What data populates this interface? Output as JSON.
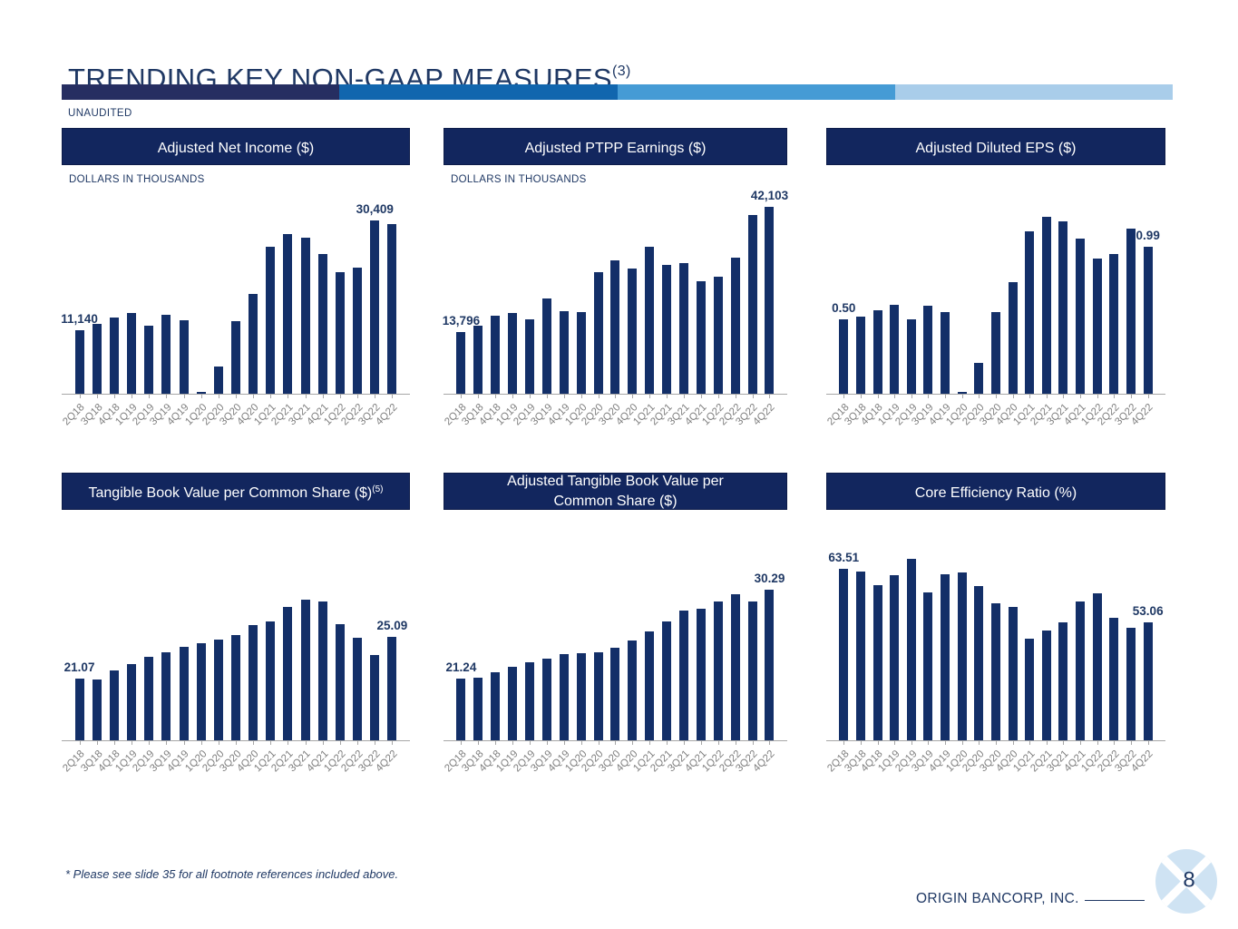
{
  "slide": {
    "title": "TRENDING KEY NON-GAAP MEASURES",
    "title_superscript": "(3)",
    "subtitle": "UNAUDITED",
    "footnote": "* Please see slide 35 for all footnote references included above.",
    "brand": "ORIGIN BANCORP, INC.",
    "page_number": "8"
  },
  "colors": {
    "navy_text": "#1f3864",
    "header_bg": "#12265e",
    "bar": "#132f68",
    "axis_gray": "#a6a6a6",
    "tick_label_gray": "#7f7f7f",
    "accent_segments": [
      "#262e61",
      "#1166ae",
      "#459bd5",
      "#a9cdea"
    ],
    "logo_fill": "#cfe3f3"
  },
  "categories": [
    "2Q18",
    "3Q18",
    "4Q18",
    "1Q19",
    "2Q19",
    "3Q19",
    "4Q19",
    "1Q20",
    "2Q20",
    "3Q20",
    "4Q20",
    "1Q21",
    "2Q21",
    "3Q21",
    "4Q21",
    "1Q22",
    "2Q22",
    "3Q22",
    "4Q22"
  ],
  "chart_data": [
    {
      "type": "bar",
      "title": "Adjusted Net Income ($)",
      "units": "DOLLARS IN THOUSANDS",
      "ylim": [
        0,
        33400
      ],
      "values": [
        11140,
        12310,
        13350,
        14230,
        11980,
        13840,
        12860,
        300,
        4830,
        12800,
        17470,
        25710,
        28020,
        27360,
        24510,
        21310,
        22140,
        30409,
        29800
      ],
      "value_labels": [
        {
          "index": 0,
          "text": "11,140"
        },
        {
          "index": 17,
          "text": "30,409"
        }
      ]
    },
    {
      "type": "bar",
      "title": "Adjusted PTPP Earnings ($)",
      "units": "DOLLARS IN THOUSANDS",
      "ylim": [
        0,
        42900
      ],
      "values": [
        13796,
        15380,
        17650,
        18270,
        16690,
        21450,
        18550,
        18480,
        27310,
        30000,
        28140,
        33170,
        29030,
        29450,
        25310,
        26420,
        30550,
        40200,
        42103
      ],
      "value_labels": [
        {
          "index": 0,
          "text": "13,796"
        },
        {
          "index": 18,
          "text": "42,103"
        }
      ]
    },
    {
      "type": "bar",
      "title": "Adjusted Diluted EPS ($)",
      "ylim": [
        0,
        1.28
      ],
      "values": [
        0.5,
        0.52,
        0.56,
        0.6,
        0.5,
        0.59,
        0.55,
        0.01,
        0.21,
        0.55,
        0.75,
        1.09,
        1.19,
        1.16,
        1.04,
        0.91,
        0.94,
        1.11,
        0.99
      ],
      "value_labels": [
        {
          "index": 0,
          "text": "0.50"
        },
        {
          "index": 18,
          "text": "0.99"
        }
      ]
    },
    {
      "type": "bar",
      "title": "Tangible Book Value per Common Share ($)",
      "title_superscript": "(5)",
      "ylim": [
        15.2,
        32.5
      ],
      "values": [
        21.07,
        21.0,
        21.85,
        22.51,
        23.2,
        23.6,
        24.1,
        24.44,
        24.84,
        25.27,
        26.16,
        26.54,
        27.89,
        28.63,
        28.46,
        26.3,
        24.95,
        23.37,
        25.09
      ],
      "value_labels": [
        {
          "index": 0,
          "text": "21.07"
        },
        {
          "index": 18,
          "text": "25.09"
        }
      ]
    },
    {
      "type": "bar",
      "title": "Adjusted Tangible Book Value per Common Share ($)",
      "ylim": [
        15.0,
        33.4
      ],
      "values": [
        21.24,
        21.37,
        21.86,
        22.41,
        22.9,
        23.3,
        23.76,
        23.82,
        23.94,
        24.38,
        25.14,
        26.07,
        27.05,
        28.12,
        28.31,
        29.05,
        29.85,
        29.05,
        30.29
      ],
      "value_labels": [
        {
          "index": 0,
          "text": "21.24"
        },
        {
          "index": 18,
          "text": "30.29"
        }
      ]
    },
    {
      "type": "bar",
      "title": "Core Efficiency Ratio (%)",
      "ylim": [
        30.2,
        65.4
      ],
      "values": [
        63.51,
        62.87,
        60.34,
        62.17,
        65.39,
        58.82,
        62.34,
        62.81,
        60.1,
        56.76,
        56.0,
        49.83,
        51.52,
        53.05,
        57.2,
        58.8,
        53.9,
        52.06,
        53.06
      ],
      "value_labels": [
        {
          "index": 0,
          "text": "63.51"
        },
        {
          "index": 18,
          "text": "53.06"
        }
      ]
    }
  ]
}
